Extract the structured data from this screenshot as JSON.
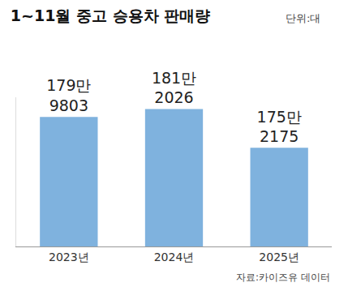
{
  "chart_data": {
    "type": "bar",
    "title": "1~11월 중고 승용차 판매량",
    "subtitle": "단위:대",
    "source": "자료:카이즈유 데이터",
    "categories": [
      "2023년",
      "2024년",
      "2025년"
    ],
    "values": [
      1799803,
      1812026,
      1752175
    ],
    "value_labels": [
      "179만\n9803",
      "181만\n2026",
      "175만\n2175"
    ],
    "data_labels": true,
    "color": "#7fb2de",
    "ylim": [
      1600000,
      1830000
    ],
    "yticks": [],
    "grid": false,
    "tick_labels": "x"
  }
}
